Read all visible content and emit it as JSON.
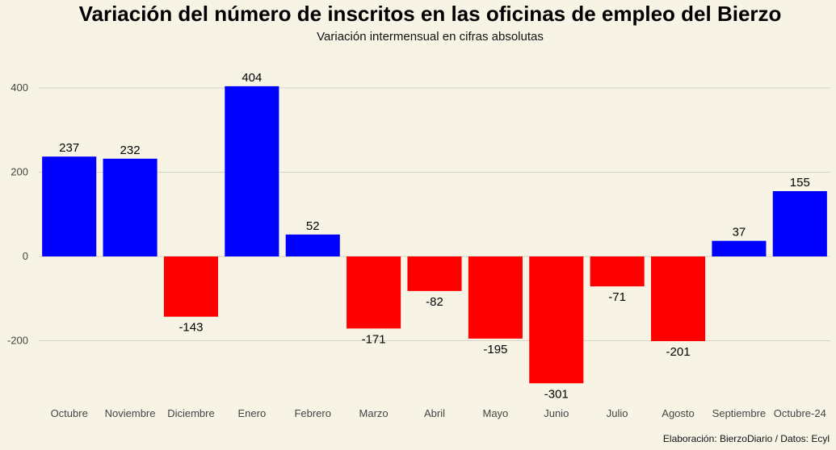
{
  "title": "Variación del número de inscritos en las oficinas de empleo del Bierzo",
  "subtitle": "Variación intermensual en cifras absolutas",
  "caption": "Elaboración: BierzoDiario / Datos: Ecyl",
  "colors": {
    "positive": "#0000ff",
    "negative": "#ff0000",
    "background": "#f7f4e6",
    "grid": "#d3d3c3"
  },
  "chart_data": {
    "type": "bar",
    "title": "Variación del número de inscritos en las oficinas de empleo del Bierzo",
    "subtitle": "Variación intermensual en cifras absolutas",
    "xlabel": "",
    "ylabel": "",
    "categories": [
      "Octubre",
      "Noviembre",
      "Diciembre",
      "Enero",
      "Febrero",
      "Marzo",
      "Abril",
      "Mayo",
      "Junio",
      "Julio",
      "Agosto",
      "Septiembre",
      "Octubre-24"
    ],
    "values": [
      237,
      232,
      -143,
      404,
      52,
      -171,
      -82,
      -195,
      -301,
      -71,
      -201,
      37,
      155
    ],
    "yticks": [
      -200,
      0,
      200,
      400
    ],
    "ylim": [
      -330,
      430
    ],
    "grid": "horizontal",
    "legend": "none"
  }
}
